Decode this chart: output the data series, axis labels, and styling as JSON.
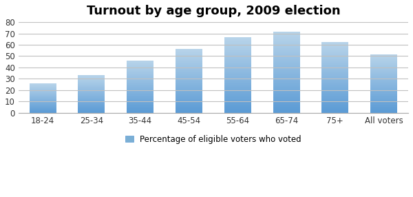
{
  "title": "Turnout by age group, 2009 election",
  "categories": [
    "18-24",
    "25-34",
    "35-44",
    "45-54",
    "55-64",
    "65-74",
    "75+",
    "All voters"
  ],
  "values": [
    26,
    33,
    46,
    56,
    66.5,
    71.5,
    62,
    51
  ],
  "bar_color_top": "#B8D4EA",
  "bar_color_bottom": "#5B9BD5",
  "background_color": "#FFFFFF",
  "plot_bg_color": "#FFFFFF",
  "grid_color": "#C0C0C0",
  "ylim": [
    0,
    80
  ],
  "yticks": [
    0,
    10,
    20,
    30,
    40,
    50,
    60,
    70,
    80
  ],
  "legend_label": "Percentage of eligible voters who voted",
  "legend_color": "#7BAFD4",
  "title_fontsize": 13,
  "tick_fontsize": 8.5,
  "legend_fontsize": 8.5,
  "bar_width": 0.55
}
